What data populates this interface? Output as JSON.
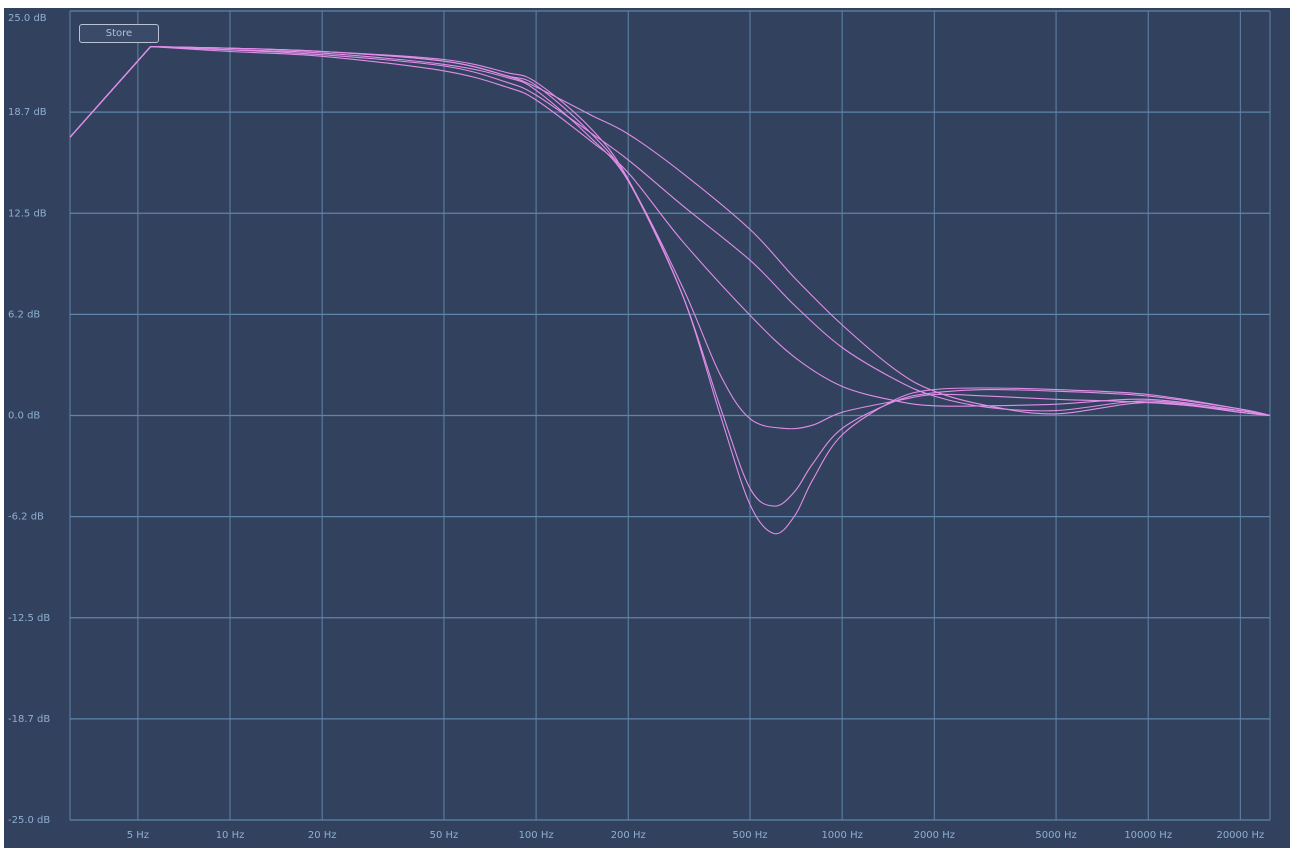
{
  "toolbar": {
    "store_label": "Store"
  },
  "colors": {
    "background": "#32415d",
    "grid": "#5e86aa",
    "curve": "#e08ee8",
    "label": "#8fb0d2"
  },
  "chart_data": {
    "type": "line",
    "xscale": "log",
    "xlim": [
      3,
      25000
    ],
    "ylim": [
      -25,
      25
    ],
    "grid": true,
    "xticks": [
      {
        "value": 5,
        "label": "5 Hz"
      },
      {
        "value": 10,
        "label": "10 Hz"
      },
      {
        "value": 20,
        "label": "20 Hz"
      },
      {
        "value": 50,
        "label": "50 Hz"
      },
      {
        "value": 100,
        "label": "100 Hz"
      },
      {
        "value": 200,
        "label": "200 Hz"
      },
      {
        "value": 500,
        "label": "500 Hz"
      },
      {
        "value": 1000,
        "label": "1000 Hz"
      },
      {
        "value": 2000,
        "label": "2000 Hz"
      },
      {
        "value": 5000,
        "label": "5000 Hz"
      },
      {
        "value": 10000,
        "label": "10000 Hz"
      },
      {
        "value": 20000,
        "label": "20000 Hz"
      }
    ],
    "yticks": [
      {
        "value": 25,
        "label": "25.0 dB"
      },
      {
        "value": 18.75,
        "label": "18.7 dB"
      },
      {
        "value": 12.5,
        "label": "12.5 dB"
      },
      {
        "value": 6.25,
        "label": "6.2 dB"
      },
      {
        "value": 0,
        "label": "0.0 dB"
      },
      {
        "value": -6.25,
        "label": "-6.2 dB"
      },
      {
        "value": -12.5,
        "label": "-12.5 dB"
      },
      {
        "value": -18.75,
        "label": "-18.7 dB"
      },
      {
        "value": -25,
        "label": "-25.0 dB"
      }
    ],
    "series": [
      {
        "values": [
          [
            3,
            17.2
          ],
          [
            5.5,
            22.8
          ],
          [
            10,
            22.7
          ],
          [
            20,
            22.5
          ],
          [
            50,
            21.9
          ],
          [
            80,
            21.0
          ],
          [
            100,
            20.3
          ],
          [
            150,
            18.6
          ],
          [
            200,
            17.4
          ],
          [
            300,
            15.0
          ],
          [
            500,
            11.5
          ],
          [
            700,
            8.5
          ],
          [
            1000,
            5.6
          ],
          [
            1500,
            2.8
          ],
          [
            2000,
            1.5
          ],
          [
            3000,
            0.6
          ],
          [
            5000,
            0.1
          ],
          [
            10000,
            0.8
          ],
          [
            20000,
            0.2
          ],
          [
            25000,
            0.0
          ]
        ]
      },
      {
        "values": [
          [
            3,
            17.2
          ],
          [
            5.5,
            22.8
          ],
          [
            10,
            22.6
          ],
          [
            20,
            22.3
          ],
          [
            50,
            21.6
          ],
          [
            80,
            20.6
          ],
          [
            100,
            19.8
          ],
          [
            150,
            17.5
          ],
          [
            200,
            15.8
          ],
          [
            300,
            13.0
          ],
          [
            500,
            9.6
          ],
          [
            700,
            6.8
          ],
          [
            1000,
            4.2
          ],
          [
            1500,
            2.2
          ],
          [
            2000,
            1.2
          ],
          [
            3000,
            0.5
          ],
          [
            5000,
            0.3
          ],
          [
            10000,
            0.9
          ],
          [
            20000,
            0.2
          ],
          [
            25000,
            0.0
          ]
        ]
      },
      {
        "values": [
          [
            3,
            17.2
          ],
          [
            5.5,
            22.8
          ],
          [
            10,
            22.5
          ],
          [
            20,
            22.2
          ],
          [
            50,
            21.3
          ],
          [
            80,
            20.3
          ],
          [
            100,
            19.5
          ],
          [
            150,
            17.0
          ],
          [
            200,
            15.0
          ],
          [
            300,
            10.8
          ],
          [
            500,
            6.2
          ],
          [
            700,
            3.6
          ],
          [
            1000,
            1.8
          ],
          [
            1500,
            0.9
          ],
          [
            2000,
            0.6
          ],
          [
            3000,
            0.6
          ],
          [
            5000,
            0.7
          ],
          [
            10000,
            1.0
          ],
          [
            20000,
            0.3
          ],
          [
            25000,
            0.0
          ]
        ]
      },
      {
        "values": [
          [
            3,
            17.2
          ],
          [
            5.5,
            22.8
          ],
          [
            10,
            22.6
          ],
          [
            20,
            22.4
          ],
          [
            50,
            21.7
          ],
          [
            80,
            20.9
          ],
          [
            100,
            20.1
          ],
          [
            150,
            17.2
          ],
          [
            200,
            14.5
          ],
          [
            300,
            8.0
          ],
          [
            400,
            2.5
          ],
          [
            500,
            -0.2
          ],
          [
            650,
            -0.8
          ],
          [
            800,
            -0.6
          ],
          [
            1000,
            0.2
          ],
          [
            1500,
            0.9
          ],
          [
            2000,
            1.3
          ],
          [
            3000,
            1.2
          ],
          [
            5000,
            1.0
          ],
          [
            10000,
            0.8
          ],
          [
            20000,
            0.3
          ],
          [
            25000,
            0.0
          ]
        ]
      },
      {
        "values": [
          [
            3,
            17.2
          ],
          [
            5.5,
            22.8
          ],
          [
            10,
            22.7
          ],
          [
            20,
            22.5
          ],
          [
            50,
            21.9
          ],
          [
            80,
            21.0
          ],
          [
            100,
            20.4
          ],
          [
            150,
            17.5
          ],
          [
            200,
            14.5
          ],
          [
            300,
            7.5
          ],
          [
            400,
            0.5
          ],
          [
            500,
            -4.5
          ],
          [
            600,
            -5.6
          ],
          [
            700,
            -4.7
          ],
          [
            800,
            -3.0
          ],
          [
            1000,
            -0.8
          ],
          [
            1500,
            0.9
          ],
          [
            2000,
            1.4
          ],
          [
            3000,
            1.6
          ],
          [
            5000,
            1.5
          ],
          [
            10000,
            1.2
          ],
          [
            20000,
            0.4
          ],
          [
            25000,
            0.0
          ]
        ]
      },
      {
        "values": [
          [
            3,
            17.2
          ],
          [
            5.5,
            22.8
          ],
          [
            10,
            22.7
          ],
          [
            20,
            22.5
          ],
          [
            50,
            22.0
          ],
          [
            80,
            21.2
          ],
          [
            100,
            20.6
          ],
          [
            150,
            17.8
          ],
          [
            200,
            14.6
          ],
          [
            300,
            7.5
          ],
          [
            400,
            0.0
          ],
          [
            500,
            -5.5
          ],
          [
            600,
            -7.3
          ],
          [
            700,
            -6.2
          ],
          [
            800,
            -4.0
          ],
          [
            1000,
            -1.2
          ],
          [
            1500,
            1.0
          ],
          [
            2000,
            1.6
          ],
          [
            3000,
            1.7
          ],
          [
            5000,
            1.6
          ],
          [
            10000,
            1.3
          ],
          [
            20000,
            0.4
          ],
          [
            25000,
            0.0
          ]
        ]
      }
    ]
  }
}
